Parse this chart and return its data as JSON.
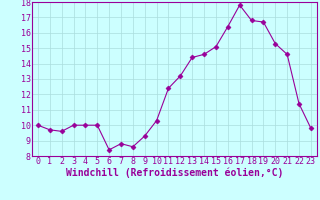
{
  "x": [
    0,
    1,
    2,
    3,
    4,
    5,
    6,
    7,
    8,
    9,
    10,
    11,
    12,
    13,
    14,
    15,
    16,
    17,
    18,
    19,
    20,
    21,
    22,
    23
  ],
  "y": [
    10.0,
    9.7,
    9.6,
    10.0,
    10.0,
    10.0,
    8.4,
    8.8,
    8.6,
    9.3,
    10.3,
    12.4,
    13.2,
    14.4,
    14.6,
    15.1,
    16.4,
    17.8,
    16.8,
    16.7,
    15.3,
    14.6,
    11.4,
    9.8
  ],
  "line_color": "#990099",
  "marker": "D",
  "marker_size": 2.5,
  "bg_color": "#ccffff",
  "grid_color": "#aadddd",
  "xlabel": "Windchill (Refroidissement éolien,°C)",
  "xlabel_fontsize": 7.0,
  "tick_fontsize": 6.0,
  "ylim": [
    8,
    18
  ],
  "xlim": [
    -0.5,
    23.5
  ],
  "yticks": [
    8,
    9,
    10,
    11,
    12,
    13,
    14,
    15,
    16,
    17,
    18
  ],
  "xticks": [
    0,
    1,
    2,
    3,
    4,
    5,
    6,
    7,
    8,
    9,
    10,
    11,
    12,
    13,
    14,
    15,
    16,
    17,
    18,
    19,
    20,
    21,
    22,
    23
  ]
}
